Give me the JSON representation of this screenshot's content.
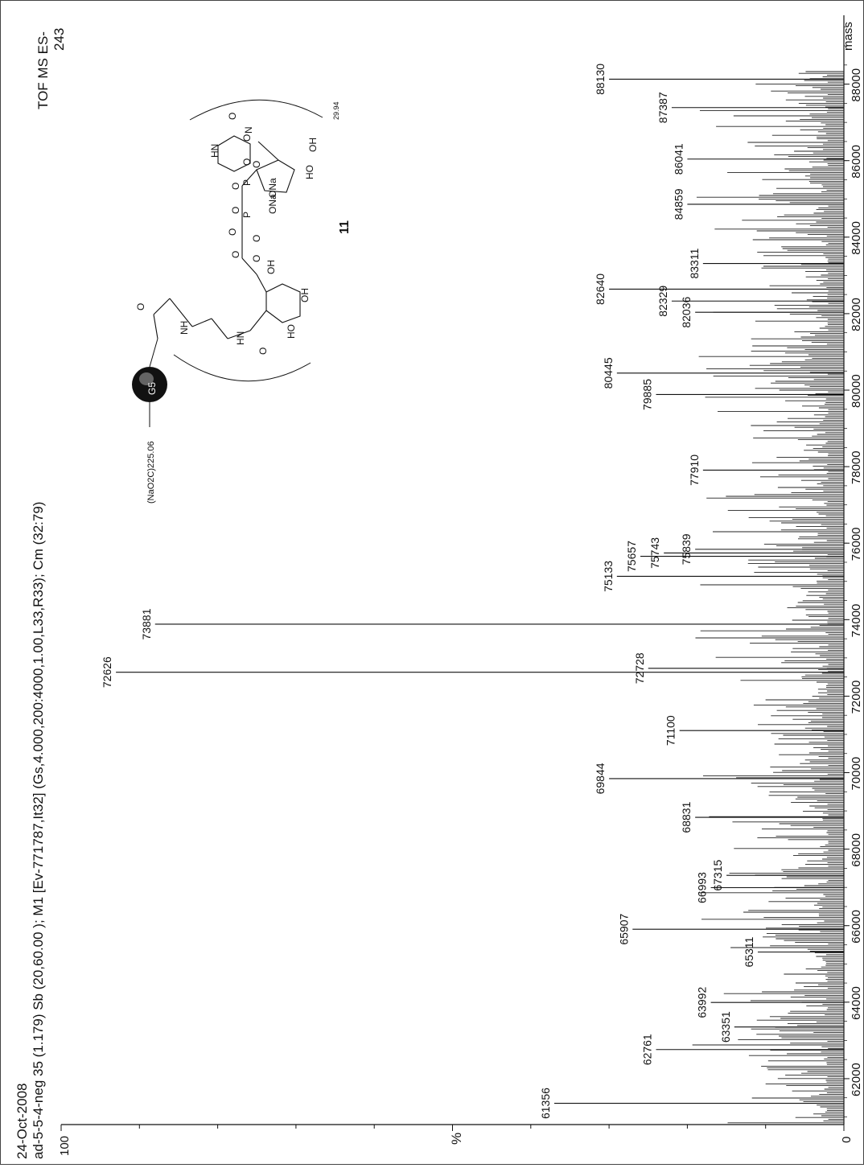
{
  "header": {
    "date": "24-Oct-2008",
    "run_info": "ad-5-5-4-neg  35 (1.179) Sb (20,60.00 ); M1 [Ev-771787,It32] (Gs,4.000,200:4000,1.00,L33,R33); Cm (32:79)",
    "instrument": "TOF MS ES-",
    "count": "243"
  },
  "structure": {
    "compound_number": "11",
    "core_label": "G5",
    "left_group": "(NaO2C)225.06",
    "repeat": "29.94",
    "atoms": [
      "O",
      "NH",
      "HN",
      "O",
      "O",
      "O",
      "O",
      "OH",
      "HO",
      "OH",
      "O",
      "P",
      "ONa",
      "O",
      "O",
      "P",
      "ONa",
      "O",
      "O",
      "N",
      "HN",
      "O",
      "O",
      "HO",
      "OH"
    ]
  },
  "chart_data": {
    "type": "bar",
    "title": "",
    "xlabel": "mass",
    "ylabel": "%",
    "xlim": [
      60800,
      89800
    ],
    "ylim": [
      0,
      100
    ],
    "x_ticks": [
      62000,
      64000,
      66000,
      68000,
      70000,
      72000,
      74000,
      76000,
      78000,
      80000,
      82000,
      84000,
      86000,
      88000
    ],
    "y_ticks": [
      0,
      100
    ],
    "labeled_peaks": [
      {
        "x": 61356,
        "y": 37,
        "label": "61356"
      },
      {
        "x": 62761,
        "y": 24,
        "label": "62761"
      },
      {
        "x": 63351,
        "y": 14,
        "label": "63351"
      },
      {
        "x": 63992,
        "y": 17,
        "label": "63992"
      },
      {
        "x": 65311,
        "y": 11,
        "label": "65311"
      },
      {
        "x": 65907,
        "y": 27,
        "label": "65907"
      },
      {
        "x": 66993,
        "y": 17,
        "label": "66993"
      },
      {
        "x": 67315,
        "y": 15,
        "label": "67315"
      },
      {
        "x": 68831,
        "y": 19,
        "label": "68831"
      },
      {
        "x": 69844,
        "y": 30,
        "label": "69844"
      },
      {
        "x": 71100,
        "y": 21,
        "label": "71100"
      },
      {
        "x": 72626,
        "y": 93,
        "label": "72626"
      },
      {
        "x": 72728,
        "y": 25,
        "label": "72728"
      },
      {
        "x": 73881,
        "y": 88,
        "label": "73881"
      },
      {
        "x": 75133,
        "y": 29,
        "label": "75133"
      },
      {
        "x": 75657,
        "y": 26,
        "label": "75657"
      },
      {
        "x": 75743,
        "y": 23,
        "label": "75743"
      },
      {
        "x": 75839,
        "y": 19,
        "label": "75839"
      },
      {
        "x": 77910,
        "y": 18,
        "label": "77910"
      },
      {
        "x": 79885,
        "y": 24,
        "label": "79885"
      },
      {
        "x": 80445,
        "y": 29,
        "label": "80445"
      },
      {
        "x": 82036,
        "y": 19,
        "label": "82036"
      },
      {
        "x": 82329,
        "y": 22,
        "label": "82329"
      },
      {
        "x": 82640,
        "y": 30,
        "label": "82640"
      },
      {
        "x": 83311,
        "y": 18,
        "label": "83311"
      },
      {
        "x": 84859,
        "y": 20,
        "label": "84859"
      },
      {
        "x": 86041,
        "y": 20,
        "label": "86041"
      },
      {
        "x": 87387,
        "y": 22,
        "label": "87387"
      },
      {
        "x": 88130,
        "y": 30,
        "label": "88130"
      }
    ]
  }
}
